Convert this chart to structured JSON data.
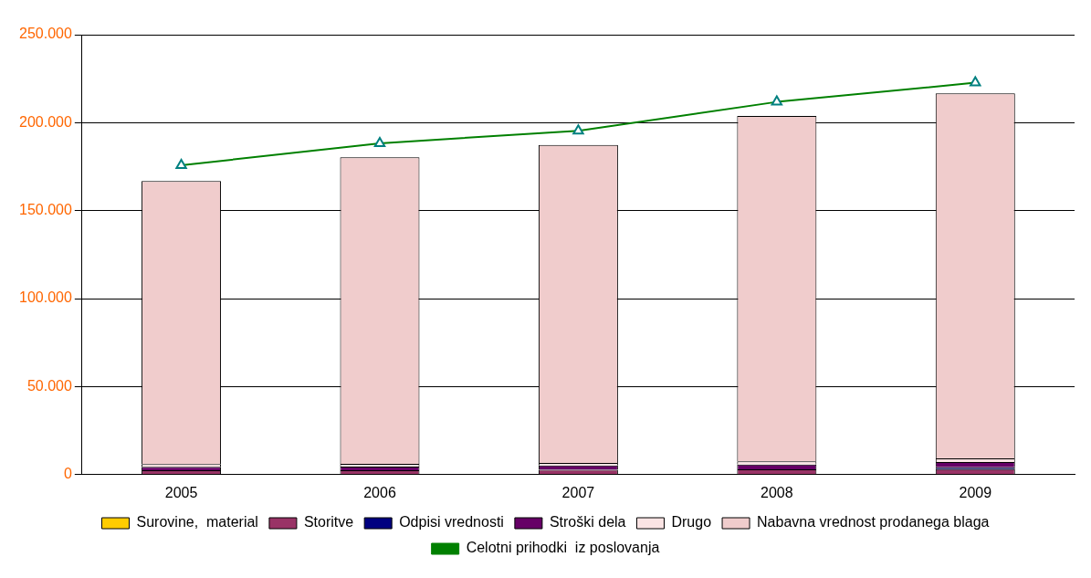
{
  "chart_data": {
    "type": "bar",
    "stacked": true,
    "categories": [
      "2005",
      "2006",
      "2007",
      "2008",
      "2009"
    ],
    "series": [
      {
        "name": "Surovine,  material",
        "color": "#ffcc00",
        "values": [
          null,
          null,
          null,
          null,
          null
        ]
      },
      {
        "name": "Storitve",
        "color": "#993366",
        "values": [
          2500,
          2500,
          2800,
          3000,
          3200
        ]
      },
      {
        "name": "Odpisi vrednosti",
        "color": "#000080",
        "values": [
          null,
          null,
          null,
          null,
          1000
        ]
      },
      {
        "name": "Stroški dela",
        "color": "#660066",
        "values": [
          2000,
          2100,
          2400,
          2700,
          3000
        ]
      },
      {
        "name": "Drugo",
        "color": "#fbe4e4",
        "values": [
          1500,
          1500,
          1500,
          1800,
          2000
        ]
      },
      {
        "name": "Nabavna vrednost prodanega blaga",
        "color": "#f0cccc",
        "values": [
          160800,
          174300,
          180700,
          196300,
          207500
        ]
      },
      {
        "name": "Celotni prihodki  iz poslovanja",
        "type": "line",
        "color": "#008000",
        "marker": "triangle",
        "values": [
          175800,
          188300,
          195400,
          211800,
          222700
        ]
      }
    ],
    "ylim": [
      0,
      250000
    ],
    "yticks": [
      {
        "value": 0,
        "label": "0"
      },
      {
        "value": 50000,
        "label": "50.000"
      },
      {
        "value": 100000,
        "label": "100.000"
      },
      {
        "value": 150000,
        "label": "150.000"
      },
      {
        "value": 200000,
        "label": "200.000"
      },
      {
        "value": 250000,
        "label": "250.000"
      }
    ],
    "grid": "y",
    "legend": "bottom"
  }
}
